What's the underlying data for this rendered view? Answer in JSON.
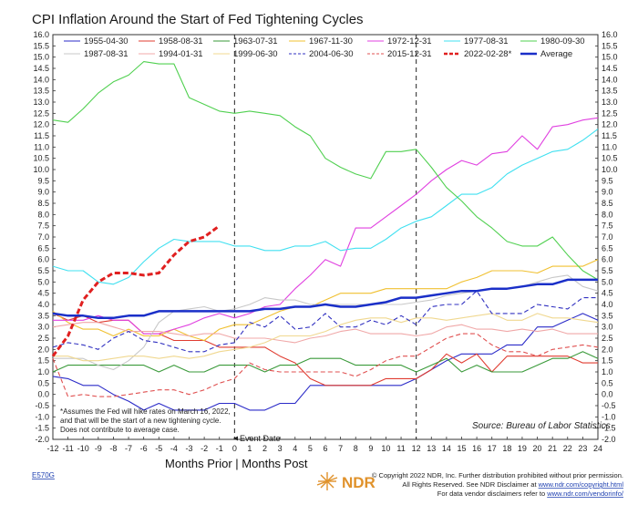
{
  "chart_data": {
    "type": "line",
    "title": "CPI Inflation Around the Start of Fed Tightening Cycles",
    "x": [
      -12,
      -11,
      -10,
      -9,
      -8,
      -7,
      -6,
      -5,
      -4,
      -3,
      -2,
      -1,
      0,
      1,
      2,
      3,
      4,
      5,
      6,
      7,
      8,
      9,
      10,
      11,
      12,
      13,
      14,
      15,
      16,
      17,
      18,
      19,
      20,
      21,
      22,
      23,
      24
    ],
    "xlim": [
      -12,
      24
    ],
    "ylim": [
      -2.0,
      16.0
    ],
    "ytick_step": 0.5,
    "x_tick_labels": [
      "-12",
      "-11",
      "-10",
      "-9",
      "-8",
      "-7",
      "-6",
      "-5",
      "-4",
      "-3",
      "-2",
      "-1",
      "0",
      "1",
      "2",
      "3",
      "4",
      "5",
      "6",
      "7",
      "8",
      "9",
      "10",
      "11",
      "12",
      "13",
      "14",
      "15",
      "16",
      "17",
      "18",
      "19",
      "20",
      "21",
      "22",
      "23",
      "24"
    ],
    "y_tick_labels": [
      "16.0",
      "15.5",
      "15.0",
      "14.5",
      "14.0",
      "13.5",
      "13.0",
      "12.5",
      "12.0",
      "11.5",
      "11.0",
      "10.5",
      "10.0",
      "9.5",
      "9.0",
      "8.5",
      "8.0",
      "7.5",
      "7.0",
      "6.5",
      "6.0",
      "5.5",
      "5.0",
      "4.5",
      "4.0",
      "3.5",
      "3.0",
      "2.5",
      "2.0",
      "1.5",
      "1.0",
      "0.5",
      "0.0",
      "-0.5",
      "-1.0",
      "-1.5",
      "-2.0"
    ],
    "vlines": [
      0,
      12
    ],
    "series": [
      {
        "name": "1955-04-30",
        "color": "#2b2bc8",
        "style": "solid",
        "width": 1.1,
        "values": [
          0.8,
          0.7,
          0.4,
          0.4,
          0.0,
          -0.3,
          -0.7,
          -0.4,
          -0.7,
          -0.7,
          -0.7,
          -0.4,
          -0.4,
          -0.7,
          -0.7,
          -0.4,
          -0.4,
          0.4,
          0.4,
          0.4,
          0.4,
          0.4,
          0.4,
          0.4,
          0.7,
          1.1,
          1.5,
          1.8,
          1.8,
          1.8,
          2.2,
          2.2,
          3.0,
          3.0,
          3.3,
          3.6,
          3.3
        ]
      },
      {
        "name": "1958-08-31",
        "color": "#e03c31",
        "style": "solid",
        "width": 1.1,
        "values": [
          3.6,
          3.3,
          3.5,
          3.2,
          3.3,
          3.3,
          2.7,
          2.7,
          2.4,
          2.4,
          2.4,
          2.1,
          2.1,
          2.1,
          2.1,
          1.7,
          1.4,
          0.7,
          0.4,
          0.4,
          0.4,
          0.4,
          0.7,
          0.7,
          0.7,
          1.1,
          1.8,
          1.4,
          1.8,
          1.0,
          1.7,
          1.7,
          1.7,
          1.7,
          1.7,
          1.4,
          1.4
        ]
      },
      {
        "name": "1963-07-31",
        "color": "#3a9a3a",
        "style": "solid",
        "width": 1.1,
        "values": [
          1.0,
          1.3,
          1.3,
          1.3,
          1.3,
          1.3,
          1.3,
          1.0,
          1.3,
          1.0,
          1.0,
          1.3,
          1.3,
          1.3,
          1.0,
          1.3,
          1.3,
          1.6,
          1.6,
          1.6,
          1.3,
          1.3,
          1.3,
          1.3,
          1.0,
          1.3,
          1.6,
          1.0,
          1.3,
          1.0,
          1.0,
          1.0,
          1.3,
          1.6,
          1.6,
          1.9,
          1.6
        ]
      },
      {
        "name": "1967-11-30",
        "color": "#f0c030",
        "style": "solid",
        "width": 1.1,
        "values": [
          3.7,
          3.2,
          2.9,
          2.9,
          2.6,
          2.9,
          2.6,
          2.6,
          2.9,
          2.6,
          2.4,
          2.9,
          3.1,
          3.1,
          3.4,
          3.7,
          3.9,
          3.9,
          4.2,
          4.5,
          4.5,
          4.5,
          4.7,
          4.7,
          4.7,
          4.7,
          4.7,
          5.0,
          5.2,
          5.5,
          5.5,
          5.5,
          5.4,
          5.7,
          5.7,
          5.7,
          6.0
        ]
      },
      {
        "name": "1972-12-31",
        "color": "#e040e0",
        "style": "solid",
        "width": 1.1,
        "values": [
          3.3,
          3.3,
          3.3,
          3.5,
          3.3,
          3.3,
          2.7,
          2.7,
          2.9,
          3.1,
          3.4,
          3.6,
          3.4,
          3.6,
          3.9,
          4.0,
          4.7,
          5.3,
          6.0,
          5.7,
          7.4,
          7.4,
          7.9,
          8.4,
          8.9,
          9.5,
          10.0,
          10.4,
          10.2,
          10.7,
          10.8,
          11.5,
          10.9,
          11.9,
          12.0,
          12.2,
          12.3
        ]
      },
      {
        "name": "1977-08-31",
        "color": "#40e0f0",
        "style": "solid",
        "width": 1.1,
        "values": [
          5.7,
          5.5,
          5.5,
          5.0,
          4.9,
          5.2,
          5.9,
          6.5,
          6.9,
          6.8,
          6.8,
          6.8,
          6.6,
          6.6,
          6.4,
          6.4,
          6.6,
          6.6,
          6.8,
          6.4,
          6.5,
          6.5,
          6.9,
          7.4,
          7.7,
          7.9,
          8.4,
          8.9,
          8.9,
          9.2,
          9.8,
          10.2,
          10.5,
          10.8,
          10.9,
          11.3,
          11.8
        ]
      },
      {
        "name": "1980-09-30",
        "color": "#50d050",
        "style": "solid",
        "width": 1.1,
        "values": [
          12.2,
          12.1,
          12.7,
          13.4,
          13.9,
          14.2,
          14.8,
          14.7,
          14.7,
          13.2,
          12.9,
          12.6,
          12.5,
          12.6,
          12.5,
          12.4,
          11.9,
          11.5,
          10.5,
          10.1,
          9.8,
          9.6,
          10.8,
          10.8,
          10.9,
          10.1,
          9.2,
          8.6,
          7.9,
          7.4,
          6.8,
          6.6,
          6.6,
          7.0,
          6.2,
          5.5,
          5.1
        ]
      },
      {
        "name": "1987-08-31",
        "color": "#c8c8c8",
        "style": "solid",
        "width": 1.1,
        "values": [
          1.6,
          1.6,
          1.6,
          1.3,
          1.1,
          1.5,
          2.1,
          3.2,
          3.7,
          3.8,
          3.9,
          3.7,
          3.8,
          4.0,
          4.3,
          4.2,
          4.2,
          4.0,
          4.0,
          4.0,
          4.0,
          4.0,
          4.0,
          4.0,
          4.1,
          4.2,
          4.4,
          4.5,
          4.6,
          4.7,
          4.7,
          4.8,
          5.0,
          5.2,
          5.3,
          4.8,
          4.6
        ]
      },
      {
        "name": "1994-01-31",
        "color": "#f0a8a8",
        "style": "solid",
        "width": 1.1,
        "values": [
          3.0,
          3.1,
          3.2,
          3.2,
          3.0,
          2.8,
          2.8,
          2.8,
          2.7,
          2.6,
          2.7,
          2.7,
          2.5,
          2.5,
          2.5,
          2.4,
          2.3,
          2.5,
          2.6,
          2.8,
          2.9,
          2.7,
          2.7,
          2.7,
          2.6,
          2.7,
          3.0,
          3.1,
          2.9,
          2.9,
          2.8,
          2.9,
          2.8,
          2.9,
          2.7,
          2.7,
          2.7
        ]
      },
      {
        "name": "1999-06-30",
        "color": "#f0d890",
        "style": "solid",
        "width": 1.1,
        "values": [
          1.7,
          1.7,
          1.5,
          1.5,
          1.6,
          1.7,
          1.7,
          1.6,
          1.7,
          1.6,
          1.7,
          1.9,
          2.0,
          2.1,
          2.3,
          2.6,
          2.6,
          2.6,
          2.8,
          3.1,
          3.3,
          3.4,
          3.4,
          3.2,
          3.4,
          3.4,
          3.3,
          3.4,
          3.5,
          3.6,
          3.3,
          3.3,
          3.6,
          3.4,
          3.4,
          3.3,
          3.2
        ]
      },
      {
        "name": "2004-06-30",
        "color": "#3030c0",
        "style": "dashed",
        "width": 1.1,
        "values": [
          2.1,
          2.3,
          2.2,
          2.0,
          2.5,
          2.8,
          2.4,
          2.3,
          2.1,
          1.9,
          1.9,
          2.2,
          2.3,
          3.2,
          3.0,
          3.5,
          2.9,
          3.0,
          3.6,
          3.0,
          3.0,
          3.3,
          3.1,
          3.5,
          3.1,
          3.9,
          4.0,
          4.0,
          4.6,
          3.6,
          3.6,
          3.6,
          4.0,
          3.9,
          3.8,
          4.3,
          4.3
        ]
      },
      {
        "name": "2015-12-31",
        "color": "#e05050",
        "style": "dashed",
        "width": 1.1,
        "values": [
          1.6,
          -0.1,
          0.0,
          -0.1,
          -0.1,
          0.0,
          0.1,
          0.2,
          0.2,
          0.0,
          0.2,
          0.5,
          0.7,
          1.4,
          1.1,
          1.0,
          1.0,
          1.0,
          1.0,
          1.0,
          0.8,
          1.1,
          1.5,
          1.7,
          1.7,
          2.1,
          2.5,
          2.7,
          2.7,
          2.2,
          1.9,
          1.9,
          1.7,
          2.0,
          2.1,
          2.2,
          2.1
        ]
      },
      {
        "name": "2022-02-28*",
        "color": "#e02020",
        "style": "bolddash",
        "width": 3,
        "values": [
          1.7,
          2.6,
          4.2,
          5.0,
          5.4,
          5.4,
          5.3,
          5.4,
          6.2,
          6.8,
          7.0,
          7.5,
          null,
          null,
          null,
          null,
          null,
          null,
          null,
          null,
          null,
          null,
          null,
          null,
          null,
          null,
          null,
          null,
          null,
          null,
          null,
          null,
          null,
          null,
          null,
          null,
          null
        ]
      },
      {
        "name": "Average",
        "color": "#1a2fc8",
        "style": "solid",
        "width": 2.5,
        "values": [
          3.6,
          3.5,
          3.5,
          3.4,
          3.4,
          3.5,
          3.5,
          3.7,
          3.7,
          3.7,
          3.7,
          3.7,
          3.7,
          3.7,
          3.8,
          3.8,
          3.9,
          3.9,
          4.0,
          3.9,
          3.9,
          4.0,
          4.1,
          4.3,
          4.3,
          4.4,
          4.5,
          4.6,
          4.6,
          4.7,
          4.7,
          4.8,
          4.9,
          4.9,
          5.1,
          5.1,
          5.1
        ]
      }
    ],
    "footnote": [
      "*Assumes the Fed will hike rates on March 16, 2022,",
      "and that will be the start of a new tightening cycle.",
      "Does not contribute to average case."
    ],
    "source": "Source:    Bureau of Labor Statistics",
    "event_label": "Event Date",
    "xlabel": "Months Prior | Months Post"
  },
  "footer": {
    "code": "E570G",
    "logo": "NDR",
    "copyright": "© Copyright 2022 NDR, Inc. Further distribution prohibited without prior permission.",
    "rights_prefix": "All Rights Reserved. See NDR Disclaimer at ",
    "rights_link": "www.ndr.com/copyright.html",
    "vendor_prefix": "For data vendor disclaimers refer to ",
    "vendor_link": "www.ndr.com/vendorinfo/"
  }
}
